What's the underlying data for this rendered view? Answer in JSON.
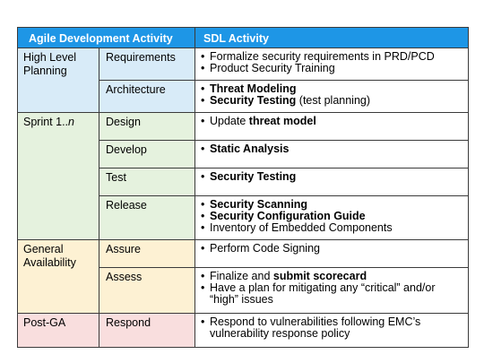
{
  "headers": {
    "agile": "Agile Development Activity",
    "sdl": "SDL Activity"
  },
  "phases": {
    "high_level": "High Level Planning",
    "sprint_prefix": "Sprint 1..",
    "sprint_n": "n",
    "general": "General Availability",
    "post_ga": "Post-GA"
  },
  "activities": {
    "requirements": "Requirements",
    "architecture": "Architecture",
    "design": "Design",
    "develop": "Develop",
    "test": "Test",
    "release": "Release",
    "assure": "Assure",
    "assess": "Assess",
    "respond": "Respond"
  },
  "sdl": {
    "req_1": "Formalize security requirements in PRD/PCD",
    "req_2": "Product Security Training",
    "arch_1": "Threat Modeling",
    "arch_2_bold": "Security Testing",
    "arch_2_rest": " (test planning)",
    "design_1_pre": "Update ",
    "design_1_bold": "threat model",
    "develop_1": "Static Analysis",
    "test_1": "Security Testing",
    "release_1": "Security Scanning",
    "release_2": "Security Configuration Guide",
    "release_3": "Inventory of Embedded Components",
    "assure_1": "Perform Code Signing",
    "assess_1_pre": "Finalize and ",
    "assess_1_bold": "submit scorecard",
    "assess_2": "Have a plan for mitigating any “critical” and/or “high” issues",
    "respond_1": "Respond to vulnerabilities following EMC’s vulnerability response policy"
  }
}
